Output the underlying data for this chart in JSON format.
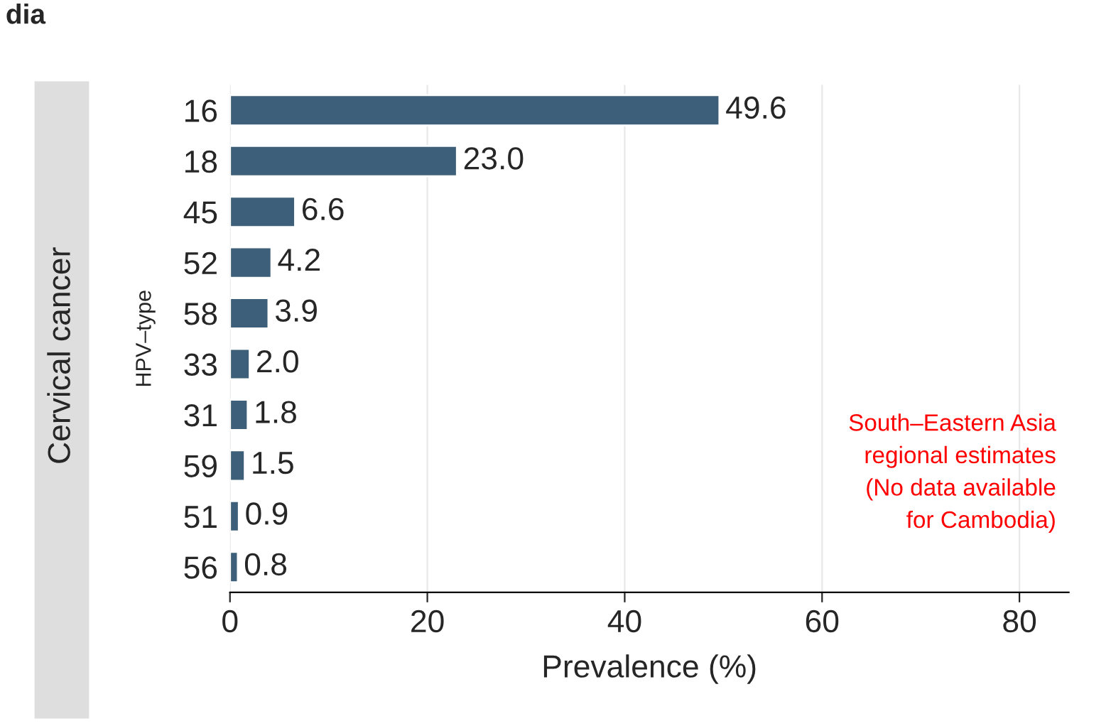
{
  "chart_data": {
    "type": "bar",
    "orientation": "horizontal",
    "categories": [
      "16",
      "18",
      "45",
      "52",
      "58",
      "33",
      "31",
      "59",
      "51",
      "56"
    ],
    "values": [
      49.6,
      23.0,
      6.6,
      4.2,
      3.9,
      2.0,
      1.8,
      1.5,
      0.9,
      0.8
    ],
    "value_labels": [
      "49.6",
      "23.0",
      "6.6",
      "4.2",
      "3.9",
      "2.0",
      "1.8",
      "1.5",
      "0.9",
      "0.8"
    ],
    "color": "#3d5f79",
    "xlabel": "Prevalence (%)",
    "ylabel": "HPV–type",
    "xlim": [
      0,
      85
    ],
    "xticks": [
      0,
      20,
      40,
      60,
      80
    ],
    "grid": "x",
    "annotations": [
      "dia",
      "Cervical cancer",
      "South–Eastern Asia\nregional estimates\n(No data available\nfor Cambodia)"
    ]
  }
}
